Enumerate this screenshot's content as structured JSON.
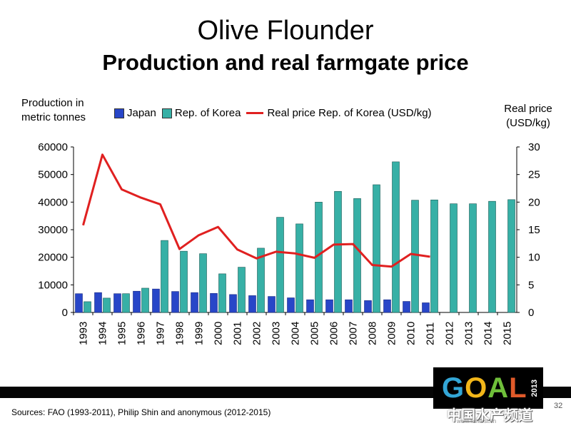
{
  "title": "Olive Flounder",
  "subtitle": "Production and real farmgate price",
  "ylabel_left": "Production in metric tonnes",
  "ylabel_right": "Real price (USD/kg)",
  "source": "Sources: FAO (1993-2011), Philip Shin and anonymous (2012-2015)",
  "logo": {
    "text": "GOAL",
    "year": "2013"
  },
  "watermark": "中国水产频道",
  "watermark_url": "www.fishfirst.cn",
  "page_number": "32",
  "colors": {
    "japan": "#2846c8",
    "korea": "#37b0a6",
    "price": "#e02020"
  },
  "chart_data": {
    "type": "bar",
    "categories": [
      "1993",
      "1994",
      "1995",
      "1996",
      "1997",
      "1998",
      "1999",
      "2000",
      "2001",
      "2002",
      "2003",
      "2004",
      "2005",
      "2006",
      "2007",
      "2008",
      "2009",
      "2010",
      "2011",
      "2012",
      "2013",
      "2014",
      "2015"
    ],
    "series": [
      {
        "name": "Japan",
        "axis": "left",
        "kind": "bar",
        "values": [
          6800,
          7200,
          6800,
          7700,
          8500,
          7600,
          7200,
          6900,
          6500,
          6100,
          5800,
          5300,
          4600,
          4600,
          4600,
          4300,
          4600,
          4000,
          3500,
          null,
          null,
          null,
          null
        ]
      },
      {
        "name": "Rep. of Korea",
        "axis": "left",
        "kind": "bar",
        "values": [
          3900,
          5200,
          6800,
          8800,
          26100,
          22200,
          21300,
          14000,
          16400,
          23300,
          34500,
          32100,
          40000,
          43900,
          41300,
          46300,
          54600,
          40700,
          40800,
          39400,
          39400,
          40300,
          40900
        ]
      },
      {
        "name": "Real price Rep. of Korea (USD/kg)",
        "axis": "right",
        "kind": "line",
        "values": [
          15.8,
          28.6,
          22.3,
          20.8,
          19.6,
          11.5,
          14.0,
          15.5,
          11.4,
          9.8,
          11.0,
          10.7,
          9.9,
          12.3,
          12.4,
          8.6,
          8.3,
          10.6,
          10.1,
          null,
          null,
          null,
          null
        ]
      }
    ],
    "ylim": [
      0,
      60000
    ],
    "yticks": [
      "0",
      "10000",
      "20000",
      "30000",
      "40000",
      "50000",
      "60000"
    ],
    "y2lim": [
      0,
      30
    ],
    "y2ticks": [
      "0",
      "5",
      "10",
      "15",
      "20",
      "25",
      "30"
    ],
    "legend": "top",
    "grid": false
  }
}
